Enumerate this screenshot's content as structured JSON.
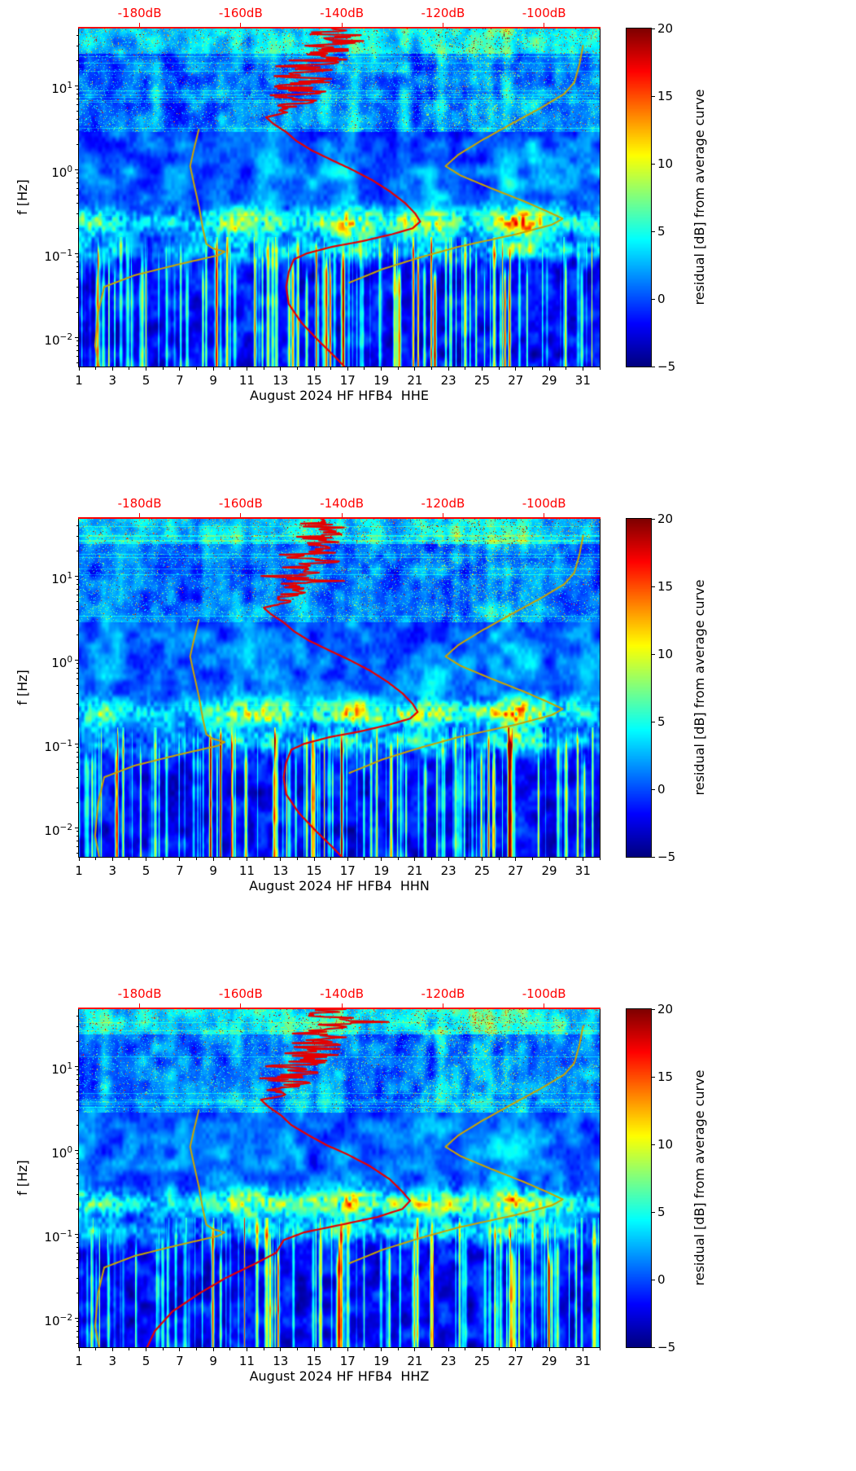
{
  "colors": {
    "background": "#ffffff",
    "axis_text": "#000000",
    "top_axis": "#ff0000",
    "red_curve": "#e50000",
    "yellow_curve": "#c9a402"
  },
  "axes": {
    "ylabel": "f [Hz]",
    "x_range": [
      1,
      32
    ],
    "f_range": [
      0.0045,
      48
    ],
    "db_range": [
      -192,
      -89
    ],
    "x_tick_days": [
      1,
      3,
      5,
      7,
      9,
      11,
      13,
      15,
      17,
      19,
      21,
      23,
      25,
      27,
      29,
      31
    ],
    "x_tick_labels": [
      "1",
      "3",
      "5",
      "7",
      "9",
      "11",
      "13",
      "15",
      "17",
      "19",
      "21",
      "23",
      "25",
      "27",
      "29",
      "31"
    ],
    "y_ticks": [
      {
        "value": 10,
        "base": "10",
        "exp": "1"
      },
      {
        "value": 1,
        "base": "10",
        "exp": "0"
      },
      {
        "value": 0.1,
        "base": "10",
        "exp": "−1"
      },
      {
        "value": 0.01,
        "base": "10",
        "exp": "−2"
      }
    ],
    "top_ticks": [
      {
        "db": -180,
        "label": "-180dB"
      },
      {
        "db": -160,
        "label": "-160dB"
      },
      {
        "db": -140,
        "label": "-140dB"
      },
      {
        "db": -120,
        "label": "-120dB"
      },
      {
        "db": -100,
        "label": "-100dB"
      }
    ]
  },
  "colorbar": {
    "label": "residual [dB] from average curve",
    "vmin": -5,
    "vmax": 20,
    "tick_values": [
      20,
      15,
      10,
      5,
      0,
      -5
    ],
    "tick_labels": [
      "20",
      "15",
      "10",
      "5",
      "0",
      "−5"
    ],
    "colormap": "jet"
  },
  "noise_models": {
    "low_noise_model": [
      [
        0.0045,
        -188
      ],
      [
        0.008,
        -188.8
      ],
      [
        0.02,
        -188.2
      ],
      [
        0.04,
        -187
      ],
      [
        0.055,
        -181
      ],
      [
        0.075,
        -172
      ],
      [
        0.095,
        -164.5
      ],
      [
        0.105,
        -163.2
      ],
      [
        0.115,
        -165.5
      ],
      [
        0.13,
        -166.8
      ],
      [
        0.2,
        -167.5
      ],
      [
        0.35,
        -168.2
      ],
      [
        0.7,
        -169.3
      ],
      [
        1.1,
        -170
      ],
      [
        1.8,
        -169.2
      ],
      [
        3,
        -168.3
      ]
    ],
    "high_noise_model": [
      [
        0.045,
        -138.5
      ],
      [
        0.065,
        -132
      ],
      [
        0.09,
        -124.5
      ],
      [
        0.12,
        -117
      ],
      [
        0.17,
        -105.5
      ],
      [
        0.22,
        -98.5
      ],
      [
        0.26,
        -96.3
      ],
      [
        0.32,
        -99.5
      ],
      [
        0.42,
        -104
      ],
      [
        0.6,
        -110.5
      ],
      [
        0.85,
        -116.5
      ],
      [
        1.1,
        -119.5
      ],
      [
        1.5,
        -117
      ],
      [
        2.2,
        -112.5
      ],
      [
        3.5,
        -106.5
      ],
      [
        5.5,
        -100.5
      ],
      [
        8,
        -96
      ],
      [
        11,
        -94
      ],
      [
        18,
        -93
      ],
      [
        30,
        -92.3
      ]
    ]
  },
  "chart_data": [
    {
      "type": "heatmap",
      "subtype": "spectrogram-residual",
      "title": "August 2024 HF HFB4  HHE",
      "channel": "HHE",
      "x_unit": "day of August 2024",
      "x_range": [
        1,
        32
      ],
      "y_unit": "Hz",
      "y_scale": "log",
      "y_range": [
        0.0045,
        48
      ],
      "value_label": "residual [dB] from average curve",
      "value_range": [
        -5,
        20
      ],
      "top_axis": {
        "unit": "dB",
        "range": [
          -192,
          -89
        ],
        "ticks": [
          -180,
          -160,
          -140,
          -120,
          -100
        ]
      },
      "overlays": {
        "average_spectrum": [
          [
            48,
            -141
          ],
          [
            40,
            -144
          ],
          [
            34,
            -138.5
          ],
          [
            30,
            -146
          ],
          [
            26,
            -140
          ],
          [
            23,
            -147
          ],
          [
            20,
            -142
          ],
          [
            17,
            -149
          ],
          [
            15,
            -143
          ],
          [
            13,
            -150
          ],
          [
            11.5,
            -144
          ],
          [
            10,
            -151
          ],
          [
            8.5,
            -146
          ],
          [
            7.5,
            -152
          ],
          [
            6.5,
            -147
          ],
          [
            5.5,
            -153
          ],
          [
            4.8,
            -150
          ],
          [
            4.2,
            -155
          ],
          [
            3.5,
            -153.5
          ],
          [
            2.8,
            -151
          ],
          [
            2.2,
            -149
          ],
          [
            1.7,
            -146
          ],
          [
            1.3,
            -142
          ],
          [
            1.0,
            -138
          ],
          [
            0.75,
            -134
          ],
          [
            0.55,
            -130.5
          ],
          [
            0.4,
            -127.5
          ],
          [
            0.3,
            -125.5
          ],
          [
            0.24,
            -124.5
          ],
          [
            0.2,
            -126
          ],
          [
            0.17,
            -130
          ],
          [
            0.14,
            -136
          ],
          [
            0.12,
            -142
          ],
          [
            0.1,
            -147
          ],
          [
            0.085,
            -149.5
          ],
          [
            0.06,
            -150.5
          ],
          [
            0.04,
            -151
          ],
          [
            0.025,
            -150.5
          ],
          [
            0.015,
            -148
          ],
          [
            0.009,
            -144.5
          ],
          [
            0.006,
            -141.5
          ],
          [
            0.0045,
            -139.5
          ]
        ]
      },
      "heat_features": {
        "seed": 11,
        "microseism_amp_by_day": [
          0.45,
          0.6,
          0.5,
          0.3,
          0.25,
          0.3,
          0.3,
          0.35,
          0.5,
          0.6,
          0.7,
          0.6,
          0.5,
          0.4,
          0.45,
          0.5,
          0.8,
          0.7,
          0.45,
          0.5,
          0.65,
          0.7,
          0.6,
          0.4,
          0.5,
          0.7,
          1.0,
          0.8,
          0.5,
          0.45,
          0.35
        ],
        "streak_amp_by_day": [
          0.2,
          0.5,
          0.6,
          0.4,
          0.5,
          0.4,
          0.3,
          0.5,
          0.6,
          0.8,
          0.8,
          0.6,
          0.5,
          0.8,
          0.9,
          0.8,
          0.6,
          0.5,
          0.4,
          0.7,
          0.8,
          0.8,
          0.6,
          0.5,
          0.8,
          1.0,
          0.9,
          0.6,
          0.5,
          0.6,
          0.5
        ],
        "highfreq_amp_by_day": [
          0.4,
          0.5,
          0.4,
          0.3,
          0.5,
          0.4,
          0.3,
          0.4,
          0.5,
          0.4,
          0.4,
          0.5,
          0.6,
          0.5,
          0.5,
          0.4,
          0.6,
          0.6,
          0.4,
          0.4,
          0.5,
          0.8,
          0.9,
          0.8,
          0.9,
          1.0,
          0.8,
          0.5,
          0.4,
          0.5,
          0.4
        ]
      }
    },
    {
      "type": "heatmap",
      "subtype": "spectrogram-residual",
      "title": "August 2024 HF HFB4  HHN",
      "channel": "HHN",
      "x_unit": "day of August 2024",
      "x_range": [
        1,
        32
      ],
      "y_unit": "Hz",
      "y_scale": "log",
      "y_range": [
        0.0045,
        48
      ],
      "value_label": "residual [dB] from average curve",
      "value_range": [
        -5,
        20
      ],
      "top_axis": {
        "unit": "dB",
        "range": [
          -192,
          -89
        ],
        "ticks": [
          -180,
          -160,
          -140,
          -120,
          -100
        ]
      },
      "overlays": {
        "average_spectrum": [
          [
            48,
            -141.5
          ],
          [
            40,
            -144.5
          ],
          [
            34,
            -139
          ],
          [
            30,
            -146.5
          ],
          [
            26,
            -140.5
          ],
          [
            23,
            -147.5
          ],
          [
            20,
            -142.5
          ],
          [
            17,
            -149.5
          ],
          [
            15,
            -143.5
          ],
          [
            13,
            -150.5
          ],
          [
            11.5,
            -144.5
          ],
          [
            10,
            -151.5
          ],
          [
            8.5,
            -146.5
          ],
          [
            7.5,
            -152.5
          ],
          [
            6.5,
            -147.5
          ],
          [
            5.5,
            -153.5
          ],
          [
            4.8,
            -150.5
          ],
          [
            4.2,
            -155.5
          ],
          [
            3.5,
            -154
          ],
          [
            2.8,
            -151.5
          ],
          [
            2.2,
            -149.5
          ],
          [
            1.7,
            -146.5
          ],
          [
            1.3,
            -142.5
          ],
          [
            1.0,
            -138.5
          ],
          [
            0.75,
            -134.5
          ],
          [
            0.55,
            -131
          ],
          [
            0.4,
            -128
          ],
          [
            0.3,
            -126
          ],
          [
            0.24,
            -125
          ],
          [
            0.2,
            -126.5
          ],
          [
            0.17,
            -130.5
          ],
          [
            0.14,
            -136.5
          ],
          [
            0.12,
            -142.5
          ],
          [
            0.1,
            -147.5
          ],
          [
            0.085,
            -150
          ],
          [
            0.06,
            -151
          ],
          [
            0.04,
            -151.5
          ],
          [
            0.025,
            -151
          ],
          [
            0.015,
            -148.5
          ],
          [
            0.009,
            -145
          ],
          [
            0.006,
            -142
          ],
          [
            0.0045,
            -140
          ]
        ]
      },
      "heat_features": {
        "seed": 22,
        "microseism_amp_by_day": [
          0.4,
          0.55,
          0.45,
          0.3,
          0.25,
          0.3,
          0.3,
          0.35,
          0.45,
          0.55,
          0.7,
          0.75,
          0.5,
          0.4,
          0.45,
          0.5,
          0.75,
          0.7,
          0.45,
          0.5,
          0.6,
          0.65,
          0.55,
          0.4,
          0.5,
          0.75,
          1.0,
          0.85,
          0.5,
          0.4,
          0.35
        ],
        "streak_amp_by_day": [
          0.25,
          0.5,
          0.55,
          0.4,
          0.5,
          0.45,
          0.3,
          0.5,
          0.65,
          0.75,
          0.8,
          0.65,
          0.5,
          0.75,
          0.85,
          0.8,
          0.6,
          0.5,
          0.45,
          0.7,
          0.75,
          0.8,
          0.6,
          0.5,
          0.8,
          0.95,
          0.9,
          0.65,
          0.5,
          0.55,
          0.5
        ],
        "highfreq_amp_by_day": [
          0.4,
          0.5,
          0.45,
          0.3,
          0.5,
          0.4,
          0.3,
          0.4,
          0.5,
          0.45,
          0.4,
          0.5,
          0.55,
          0.5,
          0.5,
          0.45,
          0.6,
          0.6,
          0.4,
          0.45,
          0.5,
          0.75,
          0.9,
          0.8,
          0.9,
          1.0,
          0.85,
          0.5,
          0.4,
          0.5,
          0.4
        ]
      }
    },
    {
      "type": "heatmap",
      "subtype": "spectrogram-residual",
      "title": "August 2024 HF HFB4  HHZ",
      "channel": "HHZ",
      "x_unit": "day of August 2024",
      "x_range": [
        1,
        32
      ],
      "y_unit": "Hz",
      "y_scale": "log",
      "y_range": [
        0.0045,
        48
      ],
      "value_label": "residual [dB] from average curve",
      "value_range": [
        -5,
        20
      ],
      "top_axis": {
        "unit": "dB",
        "range": [
          -192,
          -89
        ],
        "ticks": [
          -180,
          -160,
          -140,
          -120,
          -100
        ]
      },
      "overlays": {
        "average_spectrum": [
          [
            48,
            -140.5
          ],
          [
            40,
            -143.5
          ],
          [
            33,
            -138
          ],
          [
            28,
            -145.5
          ],
          [
            24,
            -139.5
          ],
          [
            20,
            -147
          ],
          [
            17,
            -142
          ],
          [
            14,
            -149
          ],
          [
            12,
            -144
          ],
          [
            10,
            -151
          ],
          [
            8.5,
            -146.5
          ],
          [
            7.2,
            -152.5
          ],
          [
            6.2,
            -148
          ],
          [
            5.2,
            -154
          ],
          [
            4.5,
            -151
          ],
          [
            4.0,
            -156
          ],
          [
            3.3,
            -154.5
          ],
          [
            2.6,
            -152
          ],
          [
            2.0,
            -150
          ],
          [
            1.5,
            -146.5
          ],
          [
            1.15,
            -143
          ],
          [
            0.9,
            -139
          ],
          [
            0.65,
            -134.5
          ],
          [
            0.45,
            -130.5
          ],
          [
            0.32,
            -128
          ],
          [
            0.25,
            -126.5
          ],
          [
            0.2,
            -128
          ],
          [
            0.16,
            -133
          ],
          [
            0.13,
            -140
          ],
          [
            0.105,
            -147.5
          ],
          [
            0.085,
            -151.5
          ],
          [
            0.06,
            -153
          ],
          [
            0.045,
            -157
          ],
          [
            0.03,
            -163
          ],
          [
            0.02,
            -168
          ],
          [
            0.012,
            -173.5
          ],
          [
            0.007,
            -177
          ],
          [
            0.0045,
            -178.5
          ]
        ]
      },
      "heat_features": {
        "seed": 33,
        "microseism_amp_by_day": [
          0.4,
          0.5,
          0.45,
          0.3,
          0.25,
          0.3,
          0.3,
          0.35,
          0.5,
          0.55,
          0.65,
          0.6,
          0.5,
          0.45,
          0.5,
          0.55,
          0.85,
          0.75,
          0.5,
          0.55,
          0.65,
          0.7,
          0.6,
          0.45,
          0.55,
          0.7,
          0.95,
          0.75,
          0.5,
          0.4,
          0.35
        ],
        "streak_amp_by_day": [
          0.2,
          0.45,
          0.55,
          0.4,
          0.45,
          0.4,
          0.3,
          0.45,
          0.6,
          0.7,
          0.75,
          0.6,
          0.5,
          0.7,
          0.8,
          0.75,
          0.6,
          0.5,
          0.4,
          0.65,
          0.75,
          0.75,
          0.6,
          0.5,
          0.75,
          0.9,
          0.85,
          0.6,
          0.5,
          0.55,
          0.45
        ],
        "highfreq_amp_by_day": [
          0.4,
          0.5,
          0.4,
          0.3,
          0.45,
          0.4,
          0.3,
          0.4,
          0.5,
          0.4,
          0.4,
          0.5,
          0.6,
          0.5,
          0.5,
          0.4,
          0.6,
          0.55,
          0.4,
          0.4,
          0.5,
          0.75,
          0.85,
          0.8,
          0.9,
          1.0,
          0.8,
          0.5,
          0.4,
          0.5,
          0.4
        ]
      }
    }
  ]
}
